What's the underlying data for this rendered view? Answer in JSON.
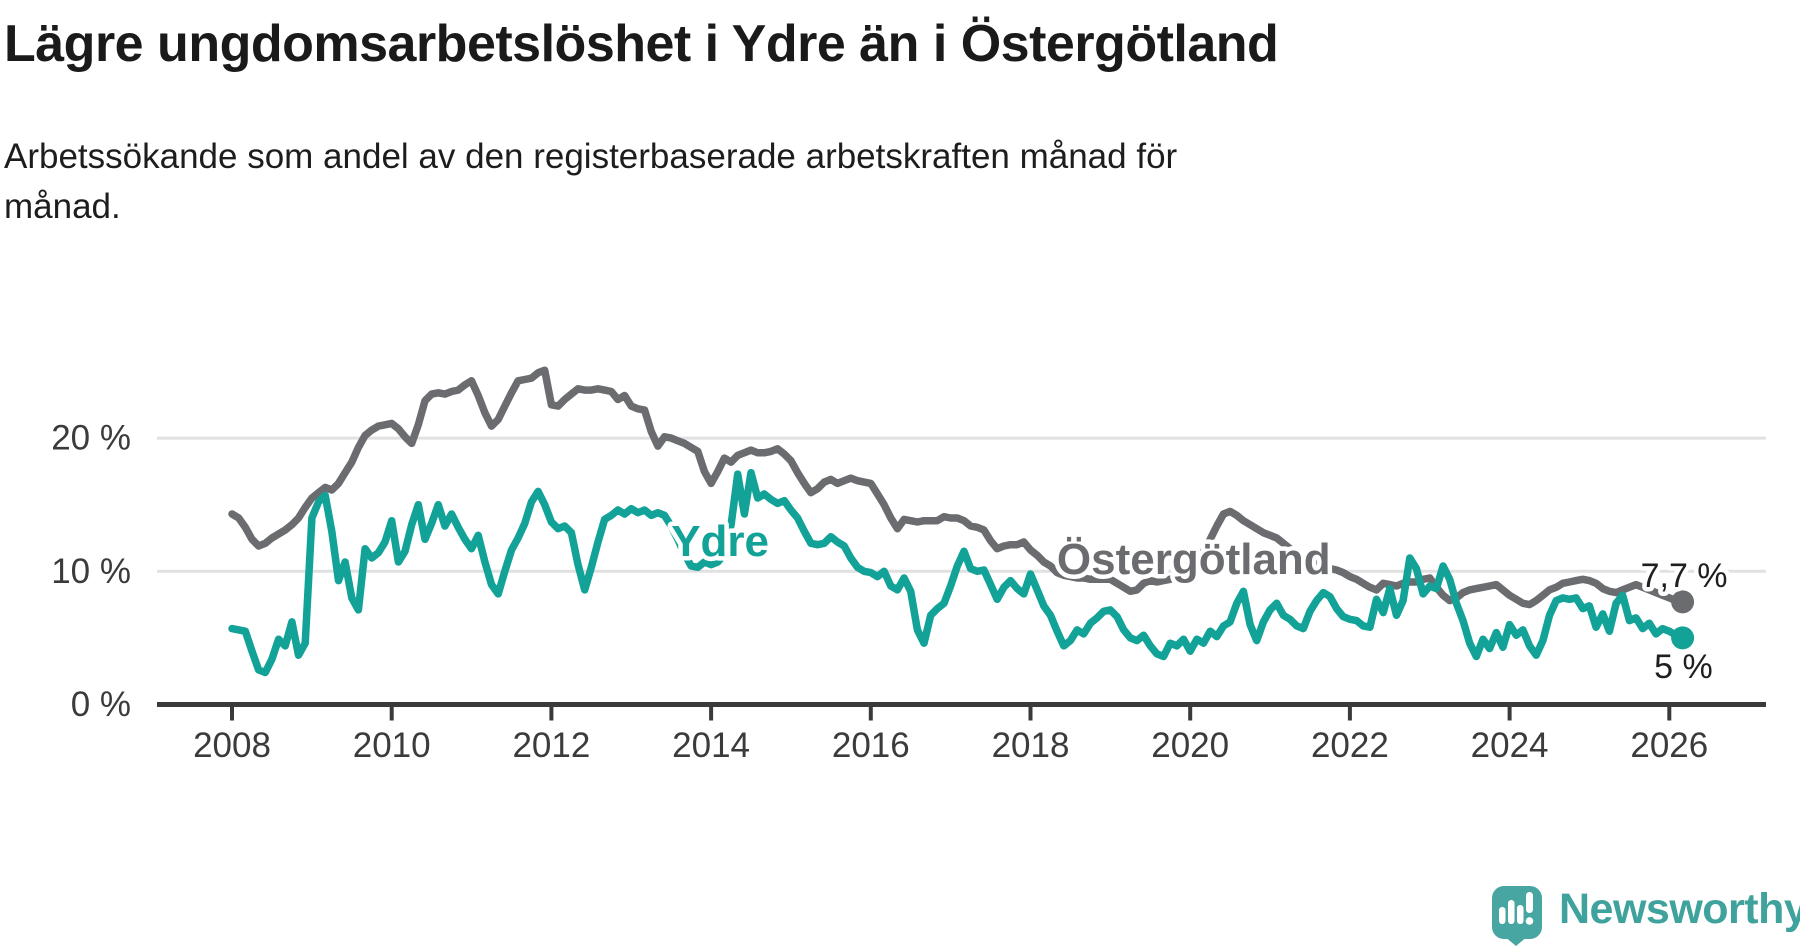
{
  "title": "Lägre ungdomsarbetslöshet i Ydre än i Östergötland",
  "subtitle": {
    "line1": "Arbetssökande som andel av den registerbaserade arbetskraften månad för",
    "line2": "månad.",
    "full": "Arbetssökande som andel av den registerbaserade arbetskraften månad för månad."
  },
  "logo": {
    "text": "Newsworthy",
    "icon": "speech-bubble-bar-chart",
    "color": "#47a6a1",
    "text_color": "#3fa29d"
  },
  "colors": {
    "background": "#ffffff",
    "title": "#1a1a1a",
    "axis": "#3a3a3c",
    "axis_text": "#3b3b3d",
    "gridline": "#e1e1e1",
    "series_ydre": "#12a297",
    "series_ostergotland": "#6b6c70",
    "value_label": "#1f1f1f"
  },
  "chart_data": {
    "type": "line",
    "title": "Lägre ungdomsarbetslöshet i Ydre än i Östergötland",
    "xlabel": "",
    "ylabel": "",
    "unit": "%",
    "xlim": [
      2007.9,
      2027.2
    ],
    "ylim": [
      0,
      28
    ],
    "grid": "horizontal",
    "legend_position": "inline-labels",
    "x_ticks": [
      {
        "year": 2008,
        "label": "2008"
      },
      {
        "year": 2010,
        "label": "2010"
      },
      {
        "year": 2012,
        "label": "2012"
      },
      {
        "year": 2014,
        "label": "2014"
      },
      {
        "year": 2016,
        "label": "2016"
      },
      {
        "year": 2018,
        "label": "2018"
      },
      {
        "year": 2020,
        "label": "2020"
      },
      {
        "year": 2022,
        "label": "2022"
      },
      {
        "year": 2024,
        "label": "2024"
      },
      {
        "year": 2026,
        "label": "2026"
      }
    ],
    "y_ticks": [
      {
        "value": 0,
        "label": "0 %",
        "gridline": false
      },
      {
        "value": 10,
        "label": "10 %",
        "gridline": true
      },
      {
        "value": 20,
        "label": "20 %",
        "gridline": true
      }
    ],
    "series": [
      {
        "name": "Östergötland",
        "color": "#6b6c70",
        "end_label": "7,7 %",
        "end_value": 7.7,
        "start_year": 2008,
        "points_per_year": 12,
        "values": [
          14.3,
          14.0,
          13.3,
          12.4,
          11.9,
          12.1,
          12.5,
          12.8,
          13.1,
          13.5,
          14.0,
          14.8,
          15.5,
          15.9,
          16.3,
          16.1,
          16.6,
          17.4,
          18.2,
          19.3,
          20.2,
          20.6,
          20.9,
          21.0,
          21.1,
          20.7,
          20.1,
          19.6,
          21.0,
          22.8,
          23.3,
          23.4,
          23.3,
          23.5,
          23.6,
          24.0,
          24.3,
          23.2,
          21.9,
          20.9,
          21.4,
          22.4,
          23.4,
          24.3,
          24.4,
          24.5,
          24.9,
          25.1,
          22.5,
          22.4,
          22.9,
          23.3,
          23.7,
          23.6,
          23.6,
          23.7,
          23.6,
          23.5,
          22.9,
          23.2,
          22.4,
          22.2,
          22.1,
          20.5,
          19.4,
          20.1,
          20.0,
          19.8,
          19.6,
          19.3,
          19.0,
          17.5,
          16.6,
          17.5,
          18.5,
          18.2,
          18.7,
          18.9,
          19.1,
          18.9,
          18.9,
          19.0,
          19.2,
          18.8,
          18.3,
          17.4,
          16.6,
          15.9,
          16.2,
          16.7,
          16.9,
          16.6,
          16.8,
          17.0,
          16.8,
          16.7,
          16.6,
          15.8,
          15.0,
          14.0,
          13.2,
          13.9,
          13.8,
          13.7,
          13.8,
          13.8,
          13.8,
          14.1,
          14.0,
          14.0,
          13.8,
          13.4,
          13.3,
          13.1,
          12.3,
          11.7,
          11.9,
          12.0,
          12.0,
          12.2,
          11.6,
          11.2,
          10.7,
          10.4,
          9.9,
          9.7,
          9.6,
          9.5,
          9.5,
          9.4,
          9.4,
          9.4,
          9.4,
          9.1,
          8.8,
          8.5,
          8.6,
          9.1,
          9.3,
          9.2,
          9.3,
          9.4,
          9.6,
          9.8,
          10.1,
          10.7,
          11.5,
          12.4,
          13.4,
          14.3,
          14.5,
          14.2,
          13.8,
          13.5,
          13.2,
          12.9,
          12.7,
          12.5,
          12.1,
          11.7,
          11.4,
          11.1,
          10.9,
          10.6,
          10.4,
          10.2,
          10.1,
          9.9,
          9.6,
          9.4,
          9.1,
          8.8,
          8.6,
          9.1,
          9.0,
          8.9,
          9.1,
          9.2,
          9.2,
          9.4,
          9.5,
          8.8,
          8.2,
          7.8,
          8.0,
          8.4,
          8.6,
          8.7,
          8.8,
          8.9,
          9.0,
          8.6,
          8.2,
          7.9,
          7.6,
          7.5,
          7.8,
          8.2,
          8.6,
          8.8,
          9.1,
          9.2,
          9.3,
          9.4,
          9.3,
          9.1,
          8.7,
          8.5,
          8.4,
          8.6,
          8.8,
          9.0,
          8.8,
          8.6,
          8.4,
          8.2,
          8.0,
          7.8,
          7.7
        ]
      },
      {
        "name": "Ydre",
        "color": "#12a297",
        "end_label": "5 %",
        "end_value": 5.0,
        "start_year": 2008,
        "points_per_year": 12,
        "values": [
          5.7,
          5.6,
          5.5,
          4.0,
          2.6,
          2.4,
          3.4,
          4.9,
          4.4,
          6.2,
          3.7,
          4.6,
          14.0,
          15.2,
          15.7,
          13.0,
          9.3,
          10.7,
          8.0,
          7.1,
          11.7,
          11.0,
          11.4,
          12.2,
          13.8,
          10.7,
          11.5,
          13.5,
          15.0,
          12.4,
          13.6,
          15.0,
          13.4,
          14.3,
          13.3,
          12.4,
          11.7,
          12.7,
          10.7,
          9.0,
          8.3,
          10.0,
          11.6,
          12.5,
          13.6,
          15.2,
          16.0,
          15.0,
          13.7,
          13.2,
          13.4,
          12.9,
          10.5,
          8.6,
          10.3,
          12.2,
          13.9,
          14.2,
          14.6,
          14.3,
          14.7,
          14.4,
          14.6,
          14.2,
          14.4,
          14.2,
          13.4,
          12.4,
          11.3,
          10.4,
          10.3,
          10.7,
          10.5,
          10.7,
          11.3,
          13.5,
          17.3,
          14.3,
          17.4,
          15.5,
          15.8,
          15.4,
          15.1,
          15.3,
          14.6,
          14.0,
          13.0,
          12.1,
          12.0,
          12.1,
          12.6,
          12.2,
          11.9,
          11.0,
          10.3,
          10.0,
          9.9,
          9.6,
          10.0,
          8.9,
          8.6,
          9.5,
          8.5,
          5.6,
          4.6,
          6.7,
          7.2,
          7.6,
          8.9,
          10.4,
          11.5,
          10.2,
          10.0,
          10.1,
          9.0,
          7.9,
          8.8,
          9.3,
          8.7,
          8.3,
          9.8,
          8.6,
          7.4,
          6.7,
          5.5,
          4.4,
          4.8,
          5.6,
          5.3,
          6.1,
          6.5,
          7.0,
          7.1,
          6.6,
          5.6,
          5.0,
          4.8,
          5.2,
          4.4,
          3.8,
          3.6,
          4.6,
          4.4,
          4.9,
          4.0,
          4.9,
          4.6,
          5.5,
          5.1,
          5.9,
          6.2,
          7.6,
          8.5,
          6.0,
          4.8,
          6.2,
          7.1,
          7.6,
          6.7,
          6.4,
          5.9,
          5.7,
          7.0,
          7.8,
          8.4,
          8.1,
          7.2,
          6.6,
          6.4,
          6.3,
          5.9,
          5.8,
          7.9,
          6.9,
          8.7,
          6.7,
          7.8,
          11.0,
          10.2,
          8.3,
          8.9,
          8.7,
          10.4,
          9.4,
          7.6,
          6.3,
          4.6,
          3.6,
          4.9,
          4.2,
          5.4,
          4.3,
          6.0,
          5.2,
          5.6,
          4.4,
          3.7,
          4.8,
          6.7,
          7.8,
          8.0,
          7.9,
          8.0,
          7.2,
          7.4,
          5.8,
          6.8,
          5.5,
          7.6,
          8.2,
          6.3,
          6.5,
          5.7,
          6.1,
          5.3,
          5.7,
          5.5,
          5.2,
          5.0
        ]
      }
    ],
    "annotations": [
      {
        "type": "series-label",
        "text": "Ydre",
        "year": 2013.5,
        "value": 11.15,
        "color": "#12a297"
      },
      {
        "type": "series-label",
        "text": "Östergötland",
        "year": 2018.33,
        "value": 9.8,
        "color": "#6b6c70"
      },
      {
        "type": "value-label",
        "text": "7,7 %",
        "year": 2025.64,
        "value": 8.82,
        "color": "#1f1f1f"
      },
      {
        "type": "value-label",
        "text": "5 %",
        "year": 2025.81,
        "value": 1.99,
        "color": "#1f1f1f"
      }
    ]
  }
}
